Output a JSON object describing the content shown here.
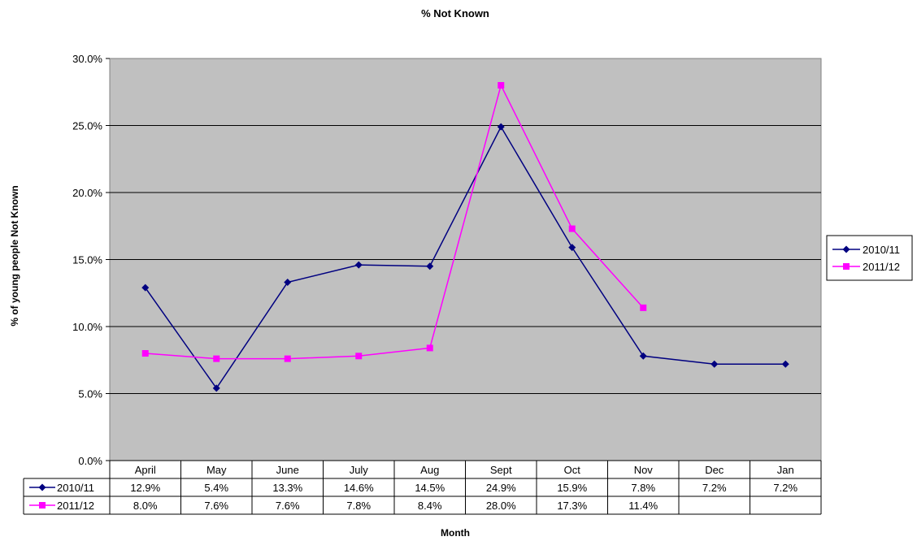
{
  "chart_data": {
    "type": "line",
    "title": "% Not Known",
    "xlabel": "Month",
    "ylabel": "% of young people Not Known",
    "categories": [
      "April",
      "May",
      "June",
      "July",
      "Aug",
      "Sept",
      "Oct",
      "Nov",
      "Dec",
      "Jan"
    ],
    "ylim": [
      0,
      30
    ],
    "yticks": [
      "0.0%",
      "5.0%",
      "10.0%",
      "15.0%",
      "20.0%",
      "25.0%",
      "30.0%"
    ],
    "grid": true,
    "legend_position": "right",
    "data_table": true,
    "series": [
      {
        "name": "2010/11",
        "color": "#000080",
        "marker": "diamond",
        "values": [
          12.9,
          5.4,
          13.3,
          14.6,
          14.5,
          24.9,
          15.9,
          7.8,
          7.2,
          7.2
        ],
        "labels": [
          "12.9%",
          "5.4%",
          "13.3%",
          "14.6%",
          "14.5%",
          "24.9%",
          "15.9%",
          "7.8%",
          "7.2%",
          "7.2%"
        ]
      },
      {
        "name": "2011/12",
        "color": "#FF00FF",
        "marker": "square",
        "values": [
          8.0,
          7.6,
          7.6,
          7.8,
          8.4,
          28.0,
          17.3,
          11.4,
          null,
          null
        ],
        "labels": [
          "8.0%",
          "7.6%",
          "7.6%",
          "7.8%",
          "8.4%",
          "28.0%",
          "17.3%",
          "11.4%",
          "",
          ""
        ]
      }
    ]
  }
}
